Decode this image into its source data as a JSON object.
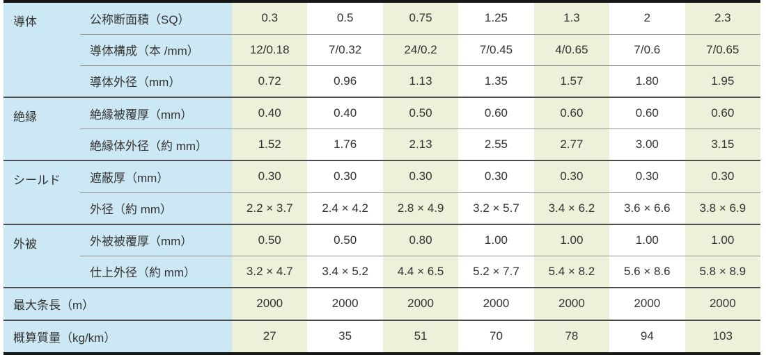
{
  "page": {
    "background_color": "#ffffff",
    "accent_colors": {
      "label_blue": "#cde8f5",
      "stripe_green": "#eef0d9",
      "heavy_border": "#161616",
      "group_line": "#4d4d4d",
      "sub_line": "#8f8f8f",
      "text": "#333333"
    }
  },
  "table": {
    "groups": [
      {
        "category": "導体",
        "rows": [
          {
            "label": "公称断面積（SQ）",
            "values": [
              "0.3",
              "0.5",
              "0.75",
              "1.25",
              "1.3",
              "2",
              "2.3"
            ]
          },
          {
            "label": "導体構成（本 /mm）",
            "values": [
              "12/0.18",
              "7/0.32",
              "24/0.2",
              "7/0.45",
              "4/0.65",
              "7/0.6",
              "7/0.65"
            ]
          },
          {
            "label": "導体外径（mm）",
            "values": [
              "0.72",
              "0.96",
              "1.13",
              "1.35",
              "1.57",
              "1.80",
              "1.95"
            ]
          }
        ]
      },
      {
        "category": "絶縁",
        "rows": [
          {
            "label": "絶縁被覆厚（mm）",
            "values": [
              "0.40",
              "0.40",
              "0.50",
              "0.60",
              "0.60",
              "0.60",
              "0.60"
            ]
          },
          {
            "label": "絶縁体外径（約 mm）",
            "values": [
              "1.52",
              "1.76",
              "2.13",
              "2.55",
              "2.77",
              "3.00",
              "3.15"
            ]
          }
        ]
      },
      {
        "category": "シールド",
        "rows": [
          {
            "label": "遮蔽厚（mm）",
            "values": [
              "0.30",
              "0.30",
              "0.30",
              "0.30",
              "0.30",
              "0.30",
              "0.30"
            ]
          },
          {
            "label": "外径（約 mm）",
            "values": [
              "2.2 × 3.7",
              "2.4 × 4.2",
              "2.8 × 4.9",
              "3.2 × 5.7",
              "3.4 × 6.2",
              "3.6 × 6.6",
              "3.8 × 6.9"
            ]
          }
        ]
      },
      {
        "category": "外被",
        "rows": [
          {
            "label": "外被被覆厚（mm）",
            "values": [
              "0.50",
              "0.50",
              "0.80",
              "1.00",
              "1.00",
              "1.00",
              "1.00"
            ]
          },
          {
            "label": "仕上外径（約 mm）",
            "values": [
              "3.2 × 4.7",
              "3.4 × 5.2",
              "4.4 × 6.5",
              "5.2 × 7.7",
              "5.4 × 8.2",
              "5.6 × 8.6",
              "5.8 × 8.9"
            ]
          }
        ]
      }
    ],
    "footer_rows": [
      {
        "label": "最大条長（m）",
        "values": [
          "2000",
          "2000",
          "2000",
          "2000",
          "2000",
          "2000",
          "2000"
        ]
      },
      {
        "label": "概算質量（kg/km）",
        "values": [
          "27",
          "35",
          "51",
          "70",
          "78",
          "94",
          "103"
        ]
      }
    ]
  }
}
